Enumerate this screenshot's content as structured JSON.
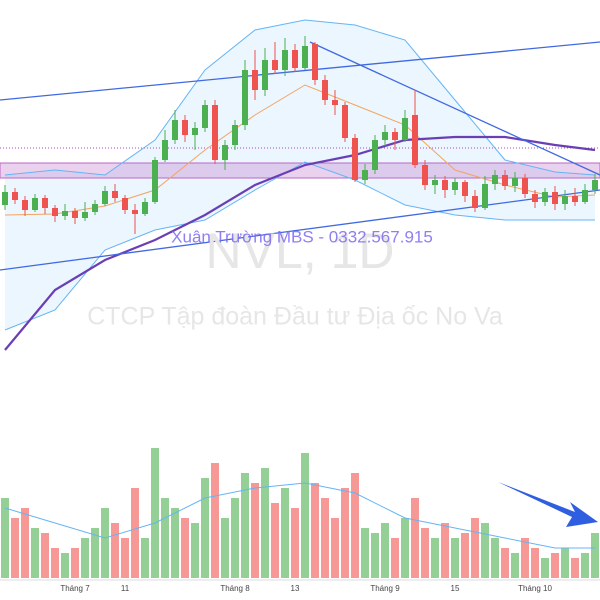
{
  "chart_data": {
    "type": "candlestick",
    "watermark_author": "Xuân Trường MBS - 0332.567.915",
    "watermark_symbol": "NVL, 1D",
    "watermark_company": "CTCP Tập đoàn Đầu tư Địa ốc No Va",
    "categories": [
      null,
      null,
      null,
      null,
      null,
      null,
      null,
      "Tháng 7",
      null,
      null,
      null,
      null,
      "11",
      null,
      null,
      null,
      null,
      null,
      null,
      null,
      null,
      null,
      null,
      "Tháng 8",
      null,
      null,
      null,
      null,
      null,
      "13",
      null,
      null,
      null,
      null,
      null,
      null,
      null,
      null,
      "Tháng 9",
      null,
      null,
      null,
      null,
      null,
      null,
      "15",
      null,
      null,
      null,
      null,
      null,
      null,
      null,
      "Tháng 10",
      null,
      null,
      null,
      null,
      null,
      null
    ],
    "ylim": [
      0,
      40
    ],
    "up_color": "#4caf50",
    "down_color": "#ef5350",
    "candles": {
      "open": [
        19.5,
        20.8,
        20.0,
        19.0,
        20.2,
        19.2,
        18.4,
        18.9,
        18.2,
        18.8,
        19.6,
        20.9,
        20.2,
        19.0,
        18.6,
        19.8,
        24.0,
        26.0,
        28.0,
        26.5,
        27.2,
        29.5,
        24.0,
        25.5,
        27.5,
        33.0,
        31.0,
        34.0,
        33.0,
        35.0,
        33.2,
        35.6,
        32.0,
        30.0,
        29.5,
        26.2,
        22.0,
        23.0,
        26.0,
        26.8,
        26.0,
        28.5,
        23.5,
        21.5,
        22.0,
        21.0,
        21.8,
        20.4,
        19.2,
        21.6,
        22.5,
        21.4,
        22.2,
        20.6,
        19.8,
        20.8,
        19.6,
        20.4,
        19.8,
        21.0
      ],
      "high": [
        21.5,
        21.2,
        20.4,
        20.6,
        20.5,
        19.5,
        19.6,
        19.2,
        19.8,
        20.0,
        21.4,
        21.6,
        20.5,
        19.6,
        20.2,
        24.3,
        27.0,
        29.0,
        28.5,
        27.8,
        30.0,
        30.0,
        26.0,
        28.0,
        34.0,
        35.0,
        35.2,
        35.8,
        36.2,
        35.6,
        36.4,
        35.8,
        32.5,
        31.0,
        29.8,
        26.6,
        23.6,
        26.5,
        27.5,
        27.2,
        29.0,
        31.0,
        24.0,
        22.5,
        22.4,
        22.2,
        22.0,
        21.0,
        22.4,
        23.0,
        23.0,
        22.8,
        22.6,
        21.0,
        21.2,
        21.4,
        21.0,
        21.2,
        21.6,
        22.6
      ],
      "low": [
        19.0,
        19.6,
        18.4,
        18.8,
        18.6,
        17.8,
        18.0,
        17.6,
        17.9,
        18.5,
        19.4,
        19.8,
        18.6,
        16.6,
        18.4,
        19.6,
        23.8,
        25.6,
        25.8,
        25.0,
        26.8,
        23.6,
        23.0,
        25.0,
        27.0,
        30.0,
        30.4,
        32.6,
        32.4,
        32.8,
        33.0,
        31.5,
        29.5,
        28.5,
        25.8,
        21.8,
        21.6,
        22.6,
        25.4,
        25.0,
        25.8,
        23.2,
        21.0,
        20.6,
        20.2,
        20.5,
        19.8,
        18.8,
        19.0,
        21.0,
        21.0,
        20.8,
        20.2,
        19.2,
        19.4,
        19.0,
        19.0,
        19.4,
        19.6,
        20.6
      ],
      "close": [
        20.8,
        20.0,
        19.0,
        20.2,
        19.2,
        18.4,
        18.9,
        18.2,
        18.8,
        19.6,
        20.9,
        20.2,
        19.0,
        18.6,
        19.8,
        24.0,
        26.0,
        28.0,
        26.5,
        27.2,
        29.5,
        24.0,
        25.5,
        27.5,
        33.0,
        31.0,
        34.0,
        33.0,
        35.0,
        33.2,
        35.4,
        32.0,
        30.0,
        29.5,
        26.2,
        22.0,
        23.0,
        26.0,
        26.8,
        26.0,
        28.2,
        23.5,
        21.5,
        22.0,
        21.0,
        21.8,
        20.4,
        19.2,
        21.6,
        22.5,
        21.4,
        22.2,
        20.6,
        19.8,
        20.8,
        19.6,
        20.4,
        19.8,
        21.0,
        22.0
      ]
    },
    "overlays": [
      {
        "color": "#64b5f6",
        "x": [
          0,
          5,
          10,
          15,
          20,
          25,
          30,
          35,
          40,
          45,
          50,
          55,
          59
        ],
        "values": [
          22.5,
          23,
          22.5,
          26,
          33,
          37,
          38,
          37.5,
          36,
          30,
          24,
          22.8,
          22.5
        ]
      },
      {
        "color": "#64b5f6",
        "x": [
          0,
          5,
          10,
          15,
          20,
          25,
          30,
          35,
          40,
          45,
          50,
          55,
          59
        ],
        "values": [
          7,
          9,
          15,
          17,
          18,
          21,
          23.8,
          22,
          19.5,
          18.5,
          18,
          18,
          18
        ]
      },
      {
        "color": "#f4a460",
        "x": [
          0,
          5,
          10,
          15,
          20,
          25,
          30,
          35,
          40,
          45,
          50,
          55,
          59
        ],
        "values": [
          18.5,
          18.6,
          19.4,
          21,
          25,
          28.5,
          31.5,
          29.5,
          27.5,
          23,
          21.5,
          20.3,
          20.5
        ]
      },
      {
        "color": "#6a3fb5",
        "x": [
          0,
          5,
          10,
          15,
          20,
          25,
          30,
          35,
          40,
          45,
          50,
          55,
          59
        ],
        "values": [
          5,
          11,
          14,
          16,
          18.5,
          21.5,
          23.5,
          24.5,
          26,
          26.3,
          26.3,
          25.5,
          25
        ]
      }
    ],
    "band_fill": "#e3f2fd",
    "trendlines": [
      {
        "color": "#4169e1",
        "x": [
          -0.5,
          59.5
        ],
        "values": [
          30,
          35.8
        ]
      },
      {
        "color": "#4169e1",
        "x": [
          -0.5,
          59.5
        ],
        "values": [
          13,
          21
        ]
      },
      {
        "color": "#4169e1",
        "x": [
          30.5,
          59.5
        ],
        "values": [
          35.8,
          22.5
        ]
      }
    ],
    "zone": {
      "color": "#ba68c8",
      "values": [
        23.7,
        22.2
      ]
    },
    "dotted_level": {
      "color": "#ab47bc",
      "value": 25.2
    },
    "volume": {
      "ylim": [
        0,
        150
      ],
      "values": [
        80,
        60,
        70,
        50,
        45,
        30,
        25,
        30,
        40,
        50,
        70,
        55,
        40,
        90,
        40,
        130,
        80,
        70,
        60,
        55,
        100,
        115,
        60,
        80,
        105,
        95,
        110,
        75,
        90,
        70,
        125,
        95,
        80,
        60,
        90,
        105,
        50,
        45,
        55,
        40,
        60,
        80,
        50,
        40,
        55,
        40,
        45,
        60,
        55,
        40,
        30,
        25,
        40,
        30,
        20,
        25,
        30,
        20,
        25,
        45
      ],
      "ma": {
        "color": "#64b5f6",
        "x": [
          0,
          5,
          10,
          15,
          20,
          25,
          30,
          35,
          40,
          45,
          50,
          55,
          59
        ],
        "values": [
          70,
          55,
          40,
          55,
          80,
          90,
          95,
          85,
          60,
          50,
          40,
          30,
          30
        ]
      }
    }
  }
}
